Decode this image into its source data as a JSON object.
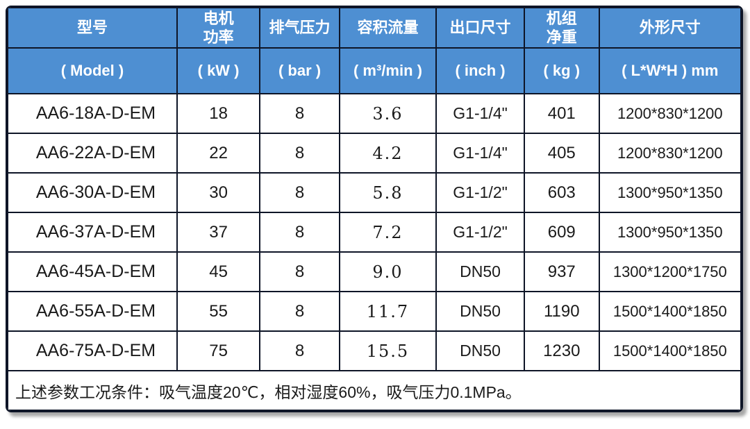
{
  "accent_color": "#4e8fd2",
  "border_color": "#0e1527",
  "header_text_color": "#ffffff",
  "chart_data": {
    "type": "table",
    "title": "",
    "columns": [
      {
        "key": "model",
        "cn": "型号",
        "unit": "( Model )"
      },
      {
        "key": "power",
        "cn": "电机\n功率",
        "unit": "( kW )"
      },
      {
        "key": "pressure",
        "cn": "排气压力",
        "unit": "( bar )"
      },
      {
        "key": "flow",
        "cn": "容积流量",
        "unit": "( m³/min )"
      },
      {
        "key": "outlet",
        "cn": "出口尺寸",
        "unit": "( inch )"
      },
      {
        "key": "weight",
        "cn": "机组\n净重",
        "unit": "( kg )"
      },
      {
        "key": "dims",
        "cn": "外形尺寸",
        "unit": "( L*W*H ) mm"
      }
    ],
    "rows": [
      [
        "AA6-18A-D-EM",
        "18",
        "8",
        "3.6",
        "G1-1/4\"",
        "401",
        "1200*830*1200"
      ],
      [
        "AA6-22A-D-EM",
        "22",
        "8",
        "4.2",
        "G1-1/4\"",
        "405",
        "1200*830*1200"
      ],
      [
        "AA6-30A-D-EM",
        "30",
        "8",
        "5.8",
        "G1-1/2\"",
        "603",
        "1300*950*1350"
      ],
      [
        "AA6-37A-D-EM",
        "37",
        "8",
        "7.2",
        "G1-1/2\"",
        "609",
        "1300*950*1350"
      ],
      [
        "AA6-45A-D-EM",
        "45",
        "8",
        "9.0",
        "DN50",
        "937",
        "1300*1200*1750"
      ],
      [
        "AA6-55A-D-EM",
        "55",
        "8",
        "11.7",
        "DN50",
        "1190",
        "1500*1400*1850"
      ],
      [
        "AA6-75A-D-EM",
        "75",
        "8",
        "15.5",
        "DN50",
        "1230",
        "1500*1400*1850"
      ]
    ],
    "footnote": "上述参数工况条件：吸气温度20℃，相对湿度60%，吸气压力0.1MPa。"
  }
}
